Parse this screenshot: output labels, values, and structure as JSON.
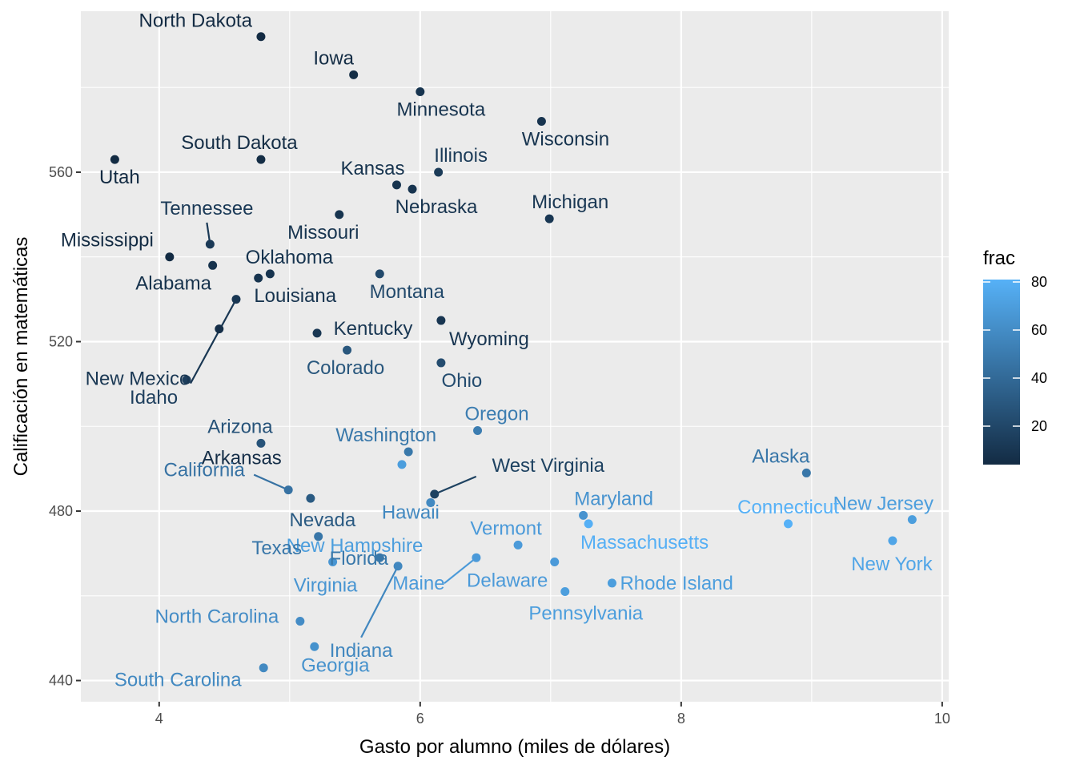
{
  "chart_data": {
    "type": "scatter",
    "title": "",
    "xlabel": "Gasto por alumno (miles de dólares)",
    "ylabel": "Calificación en matemáticas",
    "xlim": [
      3.4,
      10.05
    ],
    "ylim": [
      435,
      598
    ],
    "xticks": [
      4,
      6,
      8,
      10
    ],
    "yticks": [
      440,
      480,
      520,
      560
    ],
    "grid": true,
    "legend": {
      "title": "frac",
      "position": "right",
      "ticks": [
        20,
        40,
        60,
        80
      ],
      "range": [
        4,
        81
      ],
      "color_low": "#132B43",
      "color_high": "#56B1F7"
    },
    "points": [
      {
        "label": "North Dakota",
        "x": 4.78,
        "y": 592,
        "frac": 4
      },
      {
        "label": "Iowa",
        "x": 5.49,
        "y": 583,
        "frac": 5
      },
      {
        "label": "Minnesota",
        "x": 6.0,
        "y": 579,
        "frac": 9
      },
      {
        "label": "Wisconsin",
        "x": 6.93,
        "y": 572,
        "frac": 9
      },
      {
        "label": "Utah",
        "x": 3.66,
        "y": 563,
        "frac": 4
      },
      {
        "label": "South Dakota",
        "x": 4.78,
        "y": 563,
        "frac": 5
      },
      {
        "label": "Illinois",
        "x": 6.14,
        "y": 560,
        "frac": 13
      },
      {
        "label": "Kansas",
        "x": 5.82,
        "y": 557,
        "frac": 9
      },
      {
        "label": "Nebraska",
        "x": 5.94,
        "y": 556,
        "frac": 9
      },
      {
        "label": "Michigan",
        "x": 6.99,
        "y": 549,
        "frac": 11
      },
      {
        "label": "Missouri",
        "x": 5.38,
        "y": 550,
        "frac": 9
      },
      {
        "label": "Tennessee",
        "x": 4.39,
        "y": 543,
        "frac": 12
      },
      {
        "label": "Mississippi",
        "x": 4.08,
        "y": 540,
        "frac": 4
      },
      {
        "label": "Alabama",
        "x": 4.41,
        "y": 538,
        "frac": 8
      },
      {
        "label": "Oklahoma",
        "x": 4.85,
        "y": 536,
        "frac": 9
      },
      {
        "label": "Montana",
        "x": 5.69,
        "y": 536,
        "frac": 21
      },
      {
        "label": "Louisiana",
        "x": 4.76,
        "y": 535,
        "frac": 9
      },
      {
        "label": "New Mexico",
        "x": 4.59,
        "y": 530,
        "frac": 11
      },
      {
        "label": "Wyoming",
        "x": 6.16,
        "y": 525,
        "frac": 10
      },
      {
        "label": "Arkansas",
        "x": 4.46,
        "y": 523,
        "frac": 6
      },
      {
        "label": "Kentucky",
        "x": 5.21,
        "y": 522,
        "frac": 11
      },
      {
        "label": "Colorado",
        "x": 5.44,
        "y": 518,
        "frac": 29
      },
      {
        "label": "Ohio",
        "x": 6.16,
        "y": 515,
        "frac": 23
      },
      {
        "label": "Idaho",
        "x": 4.21,
        "y": 511,
        "frac": 15
      },
      {
        "label": "Oregon",
        "x": 6.44,
        "y": 499,
        "frac": 51
      },
      {
        "label": "Arizona",
        "x": 4.78,
        "y": 496,
        "frac": 27
      },
      {
        "label": "Washington",
        "x": 5.91,
        "y": 494,
        "frac": 48
      },
      {
        "label": "New Hampshire",
        "x": 5.86,
        "y": 491,
        "frac": 70
      },
      {
        "label": "Alaska",
        "x": 8.96,
        "y": 489,
        "frac": 47
      },
      {
        "label": "California",
        "x": 4.99,
        "y": 485,
        "frac": 45
      },
      {
        "label": "West Virginia",
        "x": 6.11,
        "y": 484,
        "frac": 17
      },
      {
        "label": "Nevada",
        "x": 5.16,
        "y": 483,
        "frac": 31
      },
      {
        "label": "Hawaii",
        "x": 6.08,
        "y": 482,
        "frac": 58
      },
      {
        "label": "Maryland",
        "x": 7.25,
        "y": 479,
        "frac": 64
      },
      {
        "label": "New Jersey",
        "x": 9.77,
        "y": 478,
        "frac": 70
      },
      {
        "label": "Connecticut",
        "x": 8.82,
        "y": 477,
        "frac": 81
      },
      {
        "label": "Massachusetts",
        "x": 7.29,
        "y": 477,
        "frac": 80
      },
      {
        "label": "Texas",
        "x": 5.22,
        "y": 474,
        "frac": 47
      },
      {
        "label": "New York",
        "x": 9.62,
        "y": 473,
        "frac": 74
      },
      {
        "label": "Vermont",
        "x": 6.75,
        "y": 472,
        "frac": 68
      },
      {
        "label": "Florida",
        "x": 5.69,
        "y": 469,
        "frac": 48
      },
      {
        "label": "Maine",
        "x": 6.43,
        "y": 469,
        "frac": 68
      },
      {
        "label": "Virginia",
        "x": 5.33,
        "y": 468,
        "frac": 65
      },
      {
        "label": "Delaware",
        "x": 7.03,
        "y": 468,
        "frac": 68
      },
      {
        "label": "Indiana",
        "x": 5.83,
        "y": 467,
        "frac": 57
      },
      {
        "label": "Rhode Island",
        "x": 7.47,
        "y": 463,
        "frac": 70
      },
      {
        "label": "Pennsylvania",
        "x": 7.11,
        "y": 461,
        "frac": 70
      },
      {
        "label": "North Carolina",
        "x": 5.08,
        "y": 454,
        "frac": 60
      },
      {
        "label": "Georgia",
        "x": 5.19,
        "y": 448,
        "frac": 63
      },
      {
        "label": "South Carolina",
        "x": 4.8,
        "y": 443,
        "frac": 58
      }
    ]
  }
}
